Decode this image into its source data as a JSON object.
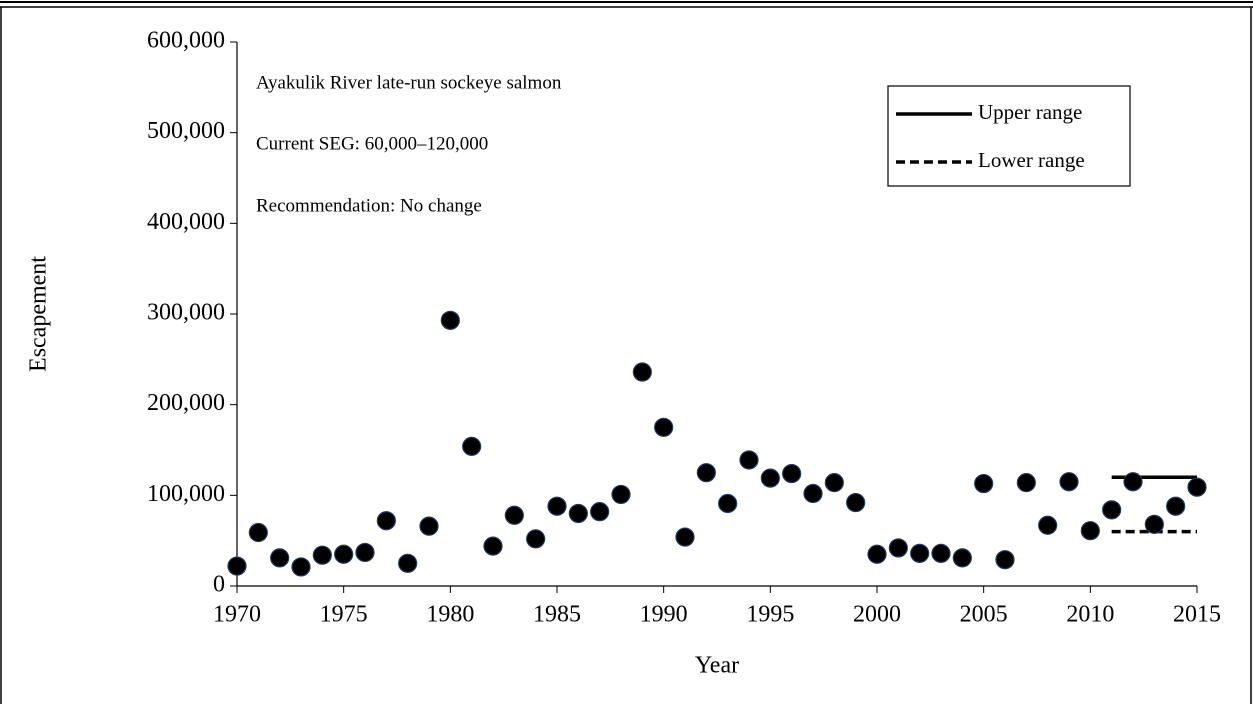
{
  "chart_data": {
    "type": "scatter",
    "annotations": [
      "Ayakulik River late-run sockeye salmon",
      "Current SEG: 60,000–120,000",
      "Recommendation:  No change"
    ],
    "xlabel": "Year",
    "ylabel": "Escapement",
    "xlim": [
      1970,
      2015
    ],
    "xticks": [
      1970,
      1975,
      1980,
      1985,
      1990,
      1995,
      2000,
      2005,
      2010,
      2015
    ],
    "ylim": [
      0,
      600000
    ],
    "yticks": [
      0,
      {
        "value": 100000,
        "label": "100,000"
      },
      {
        "value": 200000,
        "label": "200,000"
      },
      {
        "value": 300000,
        "label": "300,000"
      },
      {
        "value": 400000,
        "label": "400,000"
      },
      {
        "value": 500000,
        "label": "500,000"
      },
      {
        "value": 600000,
        "label": "600,000"
      }
    ],
    "series": [
      {
        "color": "#000000",
        "x": [
          1970,
          1971,
          1972,
          1973,
          1974,
          1975,
          1976,
          1977,
          1978,
          1979,
          1980,
          1981,
          1982,
          1983,
          1984,
          1985,
          1986,
          1987,
          1988,
          1989,
          1990,
          1991,
          1992,
          1993,
          1994,
          1995,
          1996,
          1997,
          1998,
          1999,
          2000,
          2001,
          2002,
          2003,
          2004,
          2005,
          2006,
          2007,
          2008,
          2009,
          2010,
          2011,
          2012,
          2013,
          2014,
          2015
        ],
        "values": [
          22000,
          59000,
          31000,
          21000,
          34000,
          35000,
          37000,
          72000,
          25000,
          66000,
          293000,
          154000,
          44000,
          78000,
          52000,
          88000,
          80000,
          82000,
          101000,
          236000,
          175000,
          54000,
          125000,
          91000,
          139000,
          119000,
          124000,
          102000,
          114000,
          92000,
          35000,
          42000,
          36000,
          36000,
          31000,
          113000,
          29000,
          114000,
          67000,
          115000,
          61000,
          84000,
          115000,
          68000,
          88000,
          109000
        ]
      }
    ],
    "lines": [
      {
        "name": "Upper range",
        "color": "#000000",
        "dashed": false,
        "x": [
          2011,
          2015
        ],
        "values": [
          120000,
          120000
        ]
      },
      {
        "name": "Lower range",
        "color": "#000000",
        "dashed": true,
        "x": [
          2011,
          2015
        ],
        "values": [
          60000,
          60000
        ]
      }
    ]
  }
}
